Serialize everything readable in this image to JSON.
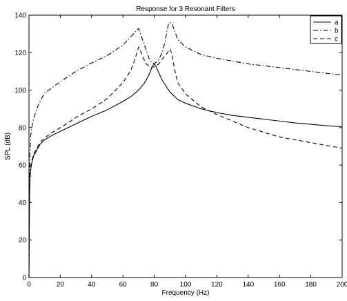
{
  "chart_data": {
    "type": "line",
    "title": "Response for 3 Resonant Filters",
    "xlabel": "Frequency (Hz)",
    "ylabel": "SPL (dB)",
    "xlim": [
      0,
      200
    ],
    "ylim": [
      0,
      140
    ],
    "xticks": [
      0,
      20,
      40,
      60,
      80,
      100,
      120,
      140,
      160,
      180,
      200
    ],
    "yticks": [
      0,
      20,
      40,
      60,
      80,
      100,
      120,
      140
    ],
    "grid": false,
    "legend_position": "top-right",
    "series": [
      {
        "name": "a",
        "line_style": "solid",
        "x": [
          0,
          0.3,
          0.6,
          1,
          2,
          3,
          5,
          7,
          10,
          15,
          20,
          25,
          30,
          40,
          50,
          60,
          65,
          70,
          73,
          75,
          77,
          79,
          80,
          81,
          83,
          85,
          88,
          90,
          95,
          100,
          110,
          120,
          130,
          140,
          150,
          160,
          170,
          180,
          190,
          200
        ],
        "y": [
          0,
          40,
          52,
          57,
          62,
          65,
          68,
          71,
          73.5,
          76,
          78,
          80,
          82,
          86,
          89.5,
          94,
          96.5,
          100,
          103,
          105.5,
          109,
          113,
          114,
          113,
          109,
          105.5,
          101.5,
          99,
          95,
          93,
          90,
          88,
          86.5,
          85.5,
          84.5,
          83.5,
          82.5,
          81.8,
          81,
          80.5
        ]
      },
      {
        "name": "b",
        "line_style": "dash-dot",
        "x": [
          0,
          0.3,
          0.6,
          1,
          2,
          3,
          5,
          7,
          10,
          15,
          20,
          30,
          40,
          50,
          60,
          65,
          70,
          75,
          77,
          80,
          83,
          85,
          87,
          88,
          89,
          90,
          91,
          92,
          95,
          100,
          110,
          120,
          130,
          140,
          160,
          180,
          200
        ],
        "y": [
          0,
          48,
          66,
          75,
          81,
          85,
          90,
          94,
          98.5,
          101.5,
          104.5,
          110,
          114.5,
          118.5,
          124,
          128.5,
          133,
          121,
          116,
          114,
          116.5,
          120,
          126,
          131,
          135,
          136,
          136,
          134,
          127,
          123,
          119,
          117,
          115.5,
          114,
          112,
          110,
          108
        ]
      },
      {
        "name": "c",
        "line_style": "dashed",
        "x": [
          0,
          0.3,
          0.6,
          1,
          2,
          3,
          5,
          7,
          10,
          15,
          20,
          25,
          30,
          40,
          50,
          60,
          65,
          67,
          69,
          70,
          71,
          73,
          75,
          78,
          80,
          83,
          85,
          88,
          90,
          91,
          93,
          95,
          100,
          110,
          120,
          140,
          160,
          180,
          200
        ],
        "y": [
          0,
          42,
          53,
          58,
          63,
          66,
          69,
          72,
          74.5,
          77.5,
          80,
          82.5,
          85.5,
          90,
          95.5,
          104,
          110.5,
          115,
          120,
          123,
          121.5,
          117,
          114,
          112,
          112.5,
          114,
          116.5,
          119.5,
          122,
          120,
          111,
          104,
          98,
          91,
          87,
          80,
          75,
          72,
          69
        ]
      }
    ]
  }
}
